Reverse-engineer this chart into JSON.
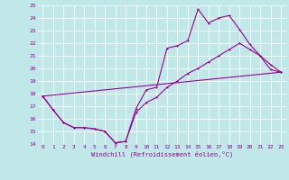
{
  "xlabel": "Windchill (Refroidissement éolien,°C)",
  "ylabel": "",
  "xlim": [
    -0.5,
    23.5
  ],
  "ylim": [
    14,
    25
  ],
  "background_color": "#c0e8e8",
  "line_color": "#990099",
  "grid_color": "#ffffff",
  "line1_x": [
    0,
    1,
    2,
    3,
    4,
    5,
    6,
    7,
    8,
    9,
    10,
    11,
    12,
    13,
    14,
    15,
    16,
    17,
    18,
    19,
    20,
    21,
    22,
    23
  ],
  "line1_y": [
    17.8,
    16.7,
    15.7,
    15.3,
    15.3,
    15.2,
    15.0,
    14.1,
    14.2,
    16.8,
    18.3,
    18.5,
    21.6,
    21.8,
    22.2,
    24.7,
    23.6,
    24.0,
    24.2,
    23.1,
    21.9,
    21.0,
    19.9,
    19.7
  ],
  "line2_x": [
    0,
    1,
    2,
    3,
    4,
    5,
    6,
    7,
    8,
    9,
    10,
    11,
    12,
    13,
    14,
    15,
    16,
    17,
    18,
    19,
    20,
    21,
    22,
    23
  ],
  "line2_y": [
    17.8,
    16.7,
    15.7,
    15.3,
    15.3,
    15.2,
    15.0,
    14.1,
    14.2,
    16.5,
    17.3,
    17.7,
    18.5,
    19.0,
    19.6,
    20.0,
    20.5,
    21.0,
    21.5,
    22.0,
    21.5,
    21.0,
    20.3,
    19.7
  ],
  "line3_x": [
    0,
    23
  ],
  "line3_y": [
    17.8,
    19.7
  ]
}
